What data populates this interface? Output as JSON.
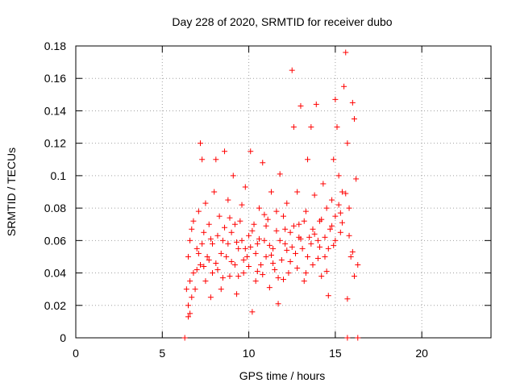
{
  "chart_data": {
    "type": "scatter",
    "title": "Day 228 of 2020, SRMTID for receiver dubo",
    "xlabel": "GPS time / hours",
    "ylabel": "SRMTID / TECUs",
    "xlim": [
      0,
      24
    ],
    "ylim": [
      0,
      0.18
    ],
    "x_ticks": [
      0,
      5,
      10,
      15,
      20
    ],
    "x_tick_labels": [
      "0",
      "5",
      "10",
      "15",
      "20"
    ],
    "y_ticks": [
      0,
      0.02,
      0.04,
      0.06,
      0.08,
      0.1,
      0.12,
      0.14,
      0.16,
      0.18
    ],
    "y_tick_labels": [
      "0",
      "0.02",
      "0.04",
      "0.06",
      "0.08",
      "0.1",
      "0.12",
      "0.14",
      "0.16",
      "0.18"
    ],
    "grid": true,
    "marker": "+",
    "color": "#ff0000",
    "series": [
      {
        "name": "SRMTID",
        "points": [
          [
            6.3,
            0.0
          ],
          [
            15.7,
            0.0
          ],
          [
            16.3,
            0.0
          ],
          [
            6.4,
            0.03
          ],
          [
            6.5,
            0.02
          ],
          [
            6.5,
            0.013
          ],
          [
            6.6,
            0.015
          ],
          [
            6.5,
            0.05
          ],
          [
            6.6,
            0.06
          ],
          [
            6.7,
            0.067
          ],
          [
            6.8,
            0.04
          ],
          [
            6.9,
            0.03
          ],
          [
            7.0,
            0.055
          ],
          [
            7.1,
            0.078
          ],
          [
            7.2,
            0.045
          ],
          [
            7.2,
            0.12
          ],
          [
            7.3,
            0.11
          ],
          [
            7.4,
            0.065
          ],
          [
            7.5,
            0.035
          ],
          [
            7.6,
            0.05
          ],
          [
            7.7,
            0.07
          ],
          [
            7.8,
            0.025
          ],
          [
            7.9,
            0.058
          ],
          [
            8.0,
            0.09
          ],
          [
            8.1,
            0.11
          ],
          [
            8.2,
            0.042
          ],
          [
            8.3,
            0.075
          ],
          [
            8.4,
            0.03
          ],
          [
            8.5,
            0.06
          ],
          [
            8.6,
            0.115
          ],
          [
            8.7,
            0.05
          ],
          [
            8.8,
            0.085
          ],
          [
            8.9,
            0.038
          ],
          [
            9.0,
            0.065
          ],
          [
            9.1,
            0.1
          ],
          [
            9.2,
            0.045
          ],
          [
            9.3,
            0.027
          ],
          [
            9.4,
            0.055
          ],
          [
            9.5,
            0.072
          ],
          [
            9.6,
            0.06
          ],
          [
            9.7,
            0.04
          ],
          [
            9.8,
            0.093
          ],
          [
            9.9,
            0.05
          ],
          [
            10.0,
            0.063
          ],
          [
            10.1,
            0.115
          ],
          [
            10.2,
            0.016
          ],
          [
            10.3,
            0.07
          ],
          [
            10.4,
            0.035
          ],
          [
            10.5,
            0.058
          ],
          [
            10.6,
            0.08
          ],
          [
            10.7,
            0.045
          ],
          [
            10.8,
            0.108
          ],
          [
            10.9,
            0.06
          ],
          [
            11.0,
            0.05
          ],
          [
            11.1,
            0.073
          ],
          [
            11.2,
            0.031
          ],
          [
            11.3,
            0.09
          ],
          [
            11.4,
            0.055
          ],
          [
            11.5,
            0.042
          ],
          [
            11.6,
            0.066
          ],
          [
            11.7,
            0.021
          ],
          [
            11.8,
            0.101
          ],
          [
            11.9,
            0.048
          ],
          [
            12.0,
            0.075
          ],
          [
            12.1,
            0.058
          ],
          [
            12.2,
            0.083
          ],
          [
            12.3,
            0.04
          ],
          [
            12.4,
            0.065
          ],
          [
            12.5,
            0.165
          ],
          [
            12.6,
            0.13
          ],
          [
            12.7,
            0.052
          ],
          [
            12.8,
            0.09
          ],
          [
            12.9,
            0.07
          ],
          [
            13.0,
            0.143
          ],
          [
            13.1,
            0.055
          ],
          [
            13.2,
            0.035
          ],
          [
            13.3,
            0.078
          ],
          [
            13.4,
            0.11
          ],
          [
            13.5,
            0.062
          ],
          [
            13.6,
            0.13
          ],
          [
            13.7,
            0.045
          ],
          [
            13.8,
            0.088
          ],
          [
            13.9,
            0.144
          ],
          [
            14.0,
            0.06
          ],
          [
            14.1,
            0.072
          ],
          [
            14.2,
            0.038
          ],
          [
            14.3,
            0.095
          ],
          [
            14.4,
            0.05
          ],
          [
            14.5,
            0.08
          ],
          [
            14.6,
            0.026
          ],
          [
            14.7,
            0.067
          ],
          [
            14.8,
            0.085
          ],
          [
            14.9,
            0.11
          ],
          [
            15.0,
            0.075
          ],
          [
            15.0,
            0.147
          ],
          [
            15.1,
            0.13
          ],
          [
            15.2,
            0.1
          ],
          [
            15.3,
            0.065
          ],
          [
            15.4,
            0.09
          ],
          [
            15.5,
            0.155
          ],
          [
            15.6,
            0.176
          ],
          [
            15.7,
            0.12
          ],
          [
            15.8,
            0.08
          ],
          [
            15.9,
            0.05
          ],
          [
            16.0,
            0.145
          ],
          [
            16.1,
            0.135
          ],
          [
            16.2,
            0.098
          ],
          [
            16.3,
            0.045
          ],
          [
            6.6,
            0.035
          ],
          [
            6.8,
            0.072
          ],
          [
            7.0,
            0.042
          ],
          [
            7.3,
            0.058
          ],
          [
            7.5,
            0.083
          ],
          [
            7.7,
            0.048
          ],
          [
            7.9,
            0.04
          ],
          [
            8.2,
            0.063
          ],
          [
            8.4,
            0.052
          ],
          [
            8.6,
            0.068
          ],
          [
            8.8,
            0.058
          ],
          [
            9.0,
            0.047
          ],
          [
            9.2,
            0.07
          ],
          [
            9.4,
            0.038
          ],
          [
            9.6,
            0.082
          ],
          [
            9.8,
            0.055
          ],
          [
            10.0,
            0.044
          ],
          [
            10.2,
            0.066
          ],
          [
            10.4,
            0.052
          ],
          [
            10.6,
            0.061
          ],
          [
            10.8,
            0.039
          ],
          [
            11.0,
            0.069
          ],
          [
            11.2,
            0.057
          ],
          [
            11.4,
            0.046
          ],
          [
            11.6,
            0.078
          ],
          [
            11.8,
            0.06
          ],
          [
            12.0,
            0.036
          ],
          [
            12.2,
            0.054
          ],
          [
            12.4,
            0.047
          ],
          [
            12.6,
            0.069
          ],
          [
            12.8,
            0.043
          ],
          [
            13.0,
            0.061
          ],
          [
            13.2,
            0.072
          ],
          [
            13.4,
            0.05
          ],
          [
            13.6,
            0.058
          ],
          [
            13.8,
            0.064
          ],
          [
            14.0,
            0.049
          ],
          [
            14.2,
            0.073
          ],
          [
            14.4,
            0.062
          ],
          [
            14.6,
            0.055
          ],
          [
            14.8,
            0.069
          ],
          [
            15.0,
            0.06
          ],
          [
            15.2,
            0.082
          ],
          [
            15.4,
            0.071
          ],
          [
            15.6,
            0.089
          ],
          [
            15.8,
            0.063
          ],
          [
            16.0,
            0.053
          ],
          [
            6.7,
            0.025
          ],
          [
            7.1,
            0.052
          ],
          [
            7.4,
            0.044
          ],
          [
            7.8,
            0.061
          ],
          [
            8.1,
            0.046
          ],
          [
            8.5,
            0.037
          ],
          [
            8.9,
            0.074
          ],
          [
            9.3,
            0.059
          ],
          [
            9.7,
            0.048
          ],
          [
            10.1,
            0.056
          ],
          [
            10.5,
            0.041
          ],
          [
            10.9,
            0.076
          ],
          [
            11.3,
            0.051
          ],
          [
            11.7,
            0.037
          ],
          [
            12.1,
            0.067
          ],
          [
            12.5,
            0.056
          ],
          [
            12.9,
            0.062
          ],
          [
            13.3,
            0.04
          ],
          [
            13.7,
            0.067
          ],
          [
            14.1,
            0.056
          ],
          [
            14.5,
            0.041
          ],
          [
            14.9,
            0.057
          ],
          [
            15.3,
            0.077
          ],
          [
            15.7,
            0.024
          ],
          [
            16.1,
            0.038
          ]
        ]
      }
    ]
  }
}
